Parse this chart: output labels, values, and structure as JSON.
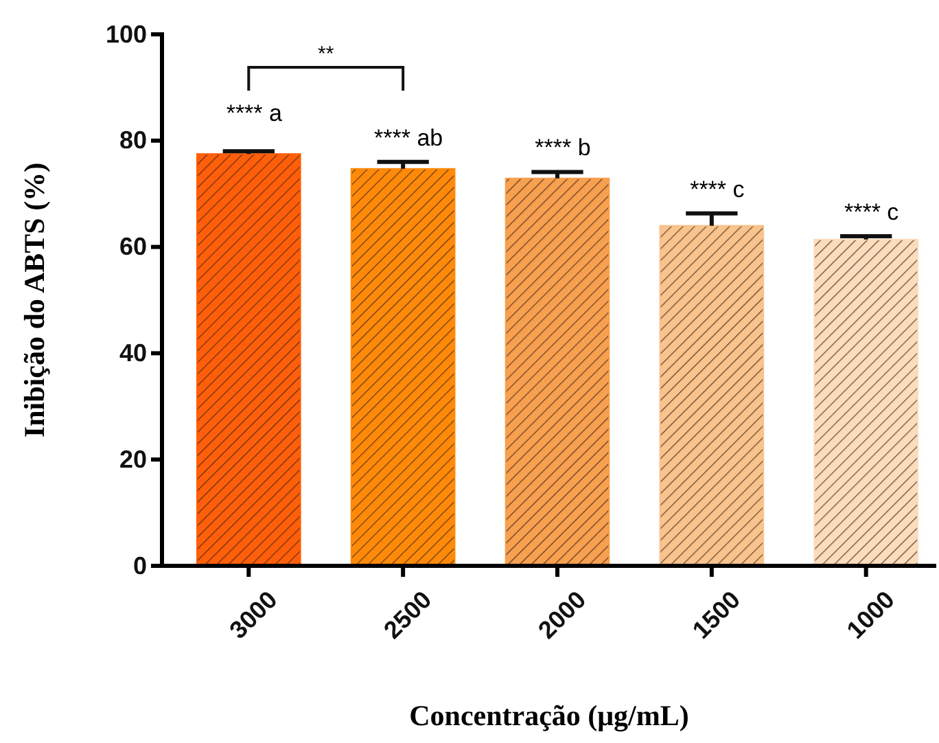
{
  "chart_data": {
    "type": "bar",
    "xlabel": "Concentração (μg/mL)",
    "ylabel": "Inibição do ABTS (%)",
    "categories": [
      "3000",
      "2500",
      "2000",
      "1500",
      "1000"
    ],
    "values": [
      77.5,
      74.7,
      72.9,
      64.0,
      61.4
    ],
    "errors": [
      0.5,
      1.3,
      1.2,
      2.3,
      0.6
    ],
    "colors": [
      "#ff5f0a",
      "#ff8a0a",
      "#f7a050",
      "#f8c38c",
      "#fbdcbc"
    ],
    "ylim": [
      0,
      100
    ],
    "yticks": [
      0,
      20,
      40,
      60,
      80,
      100
    ],
    "grid": false,
    "annotations": [
      "**** a",
      "**** ab",
      "**** b",
      "**** c",
      "**** c",
      "**"
    ]
  }
}
